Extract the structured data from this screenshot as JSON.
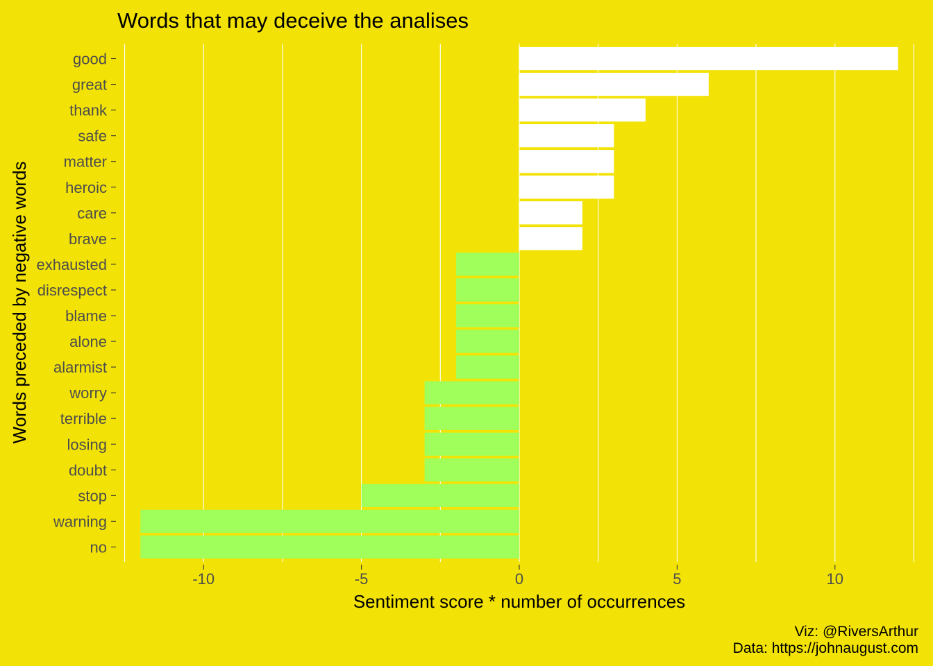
{
  "chart_data": {
    "type": "bar",
    "orientation": "horizontal",
    "title": "Words that may deceive the analises",
    "xlabel": "Sentiment score * number of occurrences",
    "ylabel": "Words preceded by negative words",
    "caption": [
      "Viz: @RiversArthur",
      "Data: https://johnaugust.com"
    ],
    "categories": [
      "good",
      "great",
      "thank",
      "safe",
      "matter",
      "heroic",
      "care",
      "brave",
      "exhausted",
      "disrespect",
      "blame",
      "alone",
      "alarmist",
      "worry",
      "terrible",
      "losing",
      "doubt",
      "stop",
      "warning",
      "no"
    ],
    "values": [
      12,
      6,
      4,
      3,
      3,
      3,
      2,
      2,
      -2,
      -2,
      -2,
      -2,
      -2,
      -3,
      -3,
      -3,
      -3,
      -5,
      -12,
      -12
    ],
    "xlim": [
      -12.6,
      12.6
    ],
    "xticks": [
      -10,
      -5,
      0,
      5,
      10
    ],
    "xtick_labels": [
      "-10",
      "-5",
      "0",
      "5",
      "10"
    ],
    "grid": "vertical",
    "legend": "none",
    "colors": {
      "background": "#F2E206",
      "positive": "#FFFFFF",
      "negative": "#A0FF5A",
      "grid": "#FFFFFF",
      "tick_text": "#4D4D4D",
      "text": "#000000"
    }
  }
}
